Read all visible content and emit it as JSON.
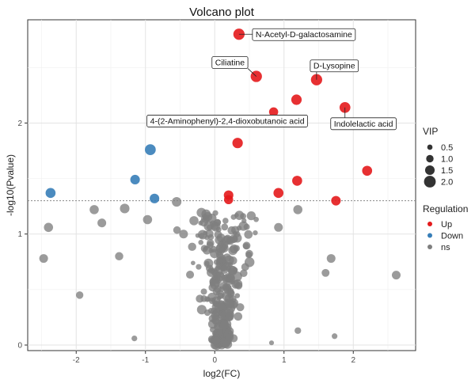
{
  "chart_data": {
    "type": "scatter",
    "title": "Volcano plot",
    "xlabel": "log2(FC)",
    "ylabel": "-log10(Pvalue)",
    "xlim": [
      -2.7,
      2.9
    ],
    "ylim": [
      -0.05,
      2.93
    ],
    "x_ticks": [
      -2,
      -1,
      0,
      1,
      2
    ],
    "y_ticks": [
      0,
      1,
      2
    ],
    "threshold_y": 1.3,
    "grid": true,
    "colors": {
      "Up": "#e41a1c",
      "Down": "#377eb8",
      "ns": "#7f7f7f"
    },
    "size_legend": {
      "title": "VIP",
      "values": [
        0.5,
        1.0,
        1.5,
        2.0
      ],
      "labels": [
        "0.5",
        "1.0",
        "1.5",
        "2.0"
      ]
    },
    "color_legend": {
      "title": "Regulation",
      "entries": [
        {
          "key": "Up",
          "label": "Up"
        },
        {
          "key": "Down",
          "label": "Down"
        },
        {
          "key": "ns",
          "label": "ns"
        }
      ]
    },
    "labels": [
      {
        "text": "N-Acetyl-D-galactosamine",
        "x": 0.35,
        "y": 2.8
      },
      {
        "text": "Ciliatine",
        "x": 0.6,
        "y": 2.42
      },
      {
        "text": "D-Lysopine",
        "x": 1.47,
        "y": 2.39
      },
      {
        "text": "4-(2-Aminophenyl)-2,4-dioxobutanoic acid",
        "x": 0.85,
        "y": 2.1
      },
      {
        "text": "Indolelactic acid",
        "x": 1.88,
        "y": 2.14
      }
    ],
    "up_points": [
      [
        0.35,
        2.8,
        1.9
      ],
      [
        0.6,
        2.42,
        1.9
      ],
      [
        1.47,
        2.39,
        1.9
      ],
      [
        1.18,
        2.21,
        1.7
      ],
      [
        1.88,
        2.14,
        1.8
      ],
      [
        0.85,
        2.1,
        1.4
      ],
      [
        0.33,
        1.82,
        1.7
      ],
      [
        2.2,
        1.57,
        1.6
      ],
      [
        1.19,
        1.48,
        1.6
      ],
      [
        0.92,
        1.37,
        1.6
      ],
      [
        0.2,
        1.35,
        1.5
      ],
      [
        0.2,
        1.31,
        1.4
      ],
      [
        1.75,
        1.3,
        1.5
      ]
    ],
    "down_points": [
      [
        -0.93,
        1.76,
        1.8
      ],
      [
        -1.15,
        1.49,
        1.5
      ],
      [
        -2.37,
        1.37,
        1.6
      ],
      [
        -0.87,
        1.32,
        1.5
      ]
    ]
  }
}
